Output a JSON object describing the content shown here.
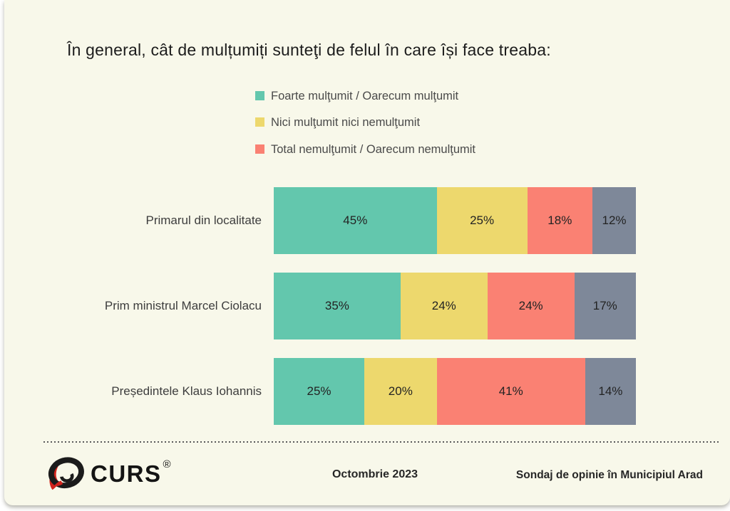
{
  "chart_data": {
    "type": "bar",
    "orientation": "horizontal_stacked",
    "title": "În general, cât de mulțumiți sunteţi de felul în care își face treaba:",
    "categories": [
      "Primarul din localitate",
      "Prim ministrul Marcel Ciolacu",
      "Președintele Klaus Iohannis"
    ],
    "series": [
      {
        "name": "Foarte mulţumit / Oarecum mulţumit",
        "color": "#63c7ad",
        "values": [
          45,
          35,
          25
        ],
        "in_legend": true
      },
      {
        "name": "Nici mulţumit nici nemulţumit",
        "color": "#edd86d",
        "values": [
          25,
          24,
          20
        ],
        "in_legend": true
      },
      {
        "name": "Total nemulţumit / Oarecum nemulţumit",
        "color": "#fa8173",
        "values": [
          18,
          24,
          41
        ],
        "in_legend": true
      },
      {
        "name": "",
        "color": "#7e8899",
        "values": [
          12,
          17,
          14
        ],
        "in_legend": false
      }
    ],
    "value_suffix": "%",
    "xlim": [
      0,
      100
    ],
    "grid": false,
    "legend_position": "top"
  },
  "footer": {
    "logo_text": "CURS",
    "logo_reg": "®",
    "date": "Octombrie 2023",
    "note": "Sondaj de opinie în Municipiul Arad"
  },
  "colors": {
    "background": "#f8f8ea",
    "title_text": "#1c1c1c",
    "label_text": "#3d3d3d",
    "value_text": "#232323",
    "legend_text": "#4a4a4a",
    "divider": "#5a5a5a",
    "logo_black": "#1b1b1b",
    "logo_red": "#d0231c"
  }
}
